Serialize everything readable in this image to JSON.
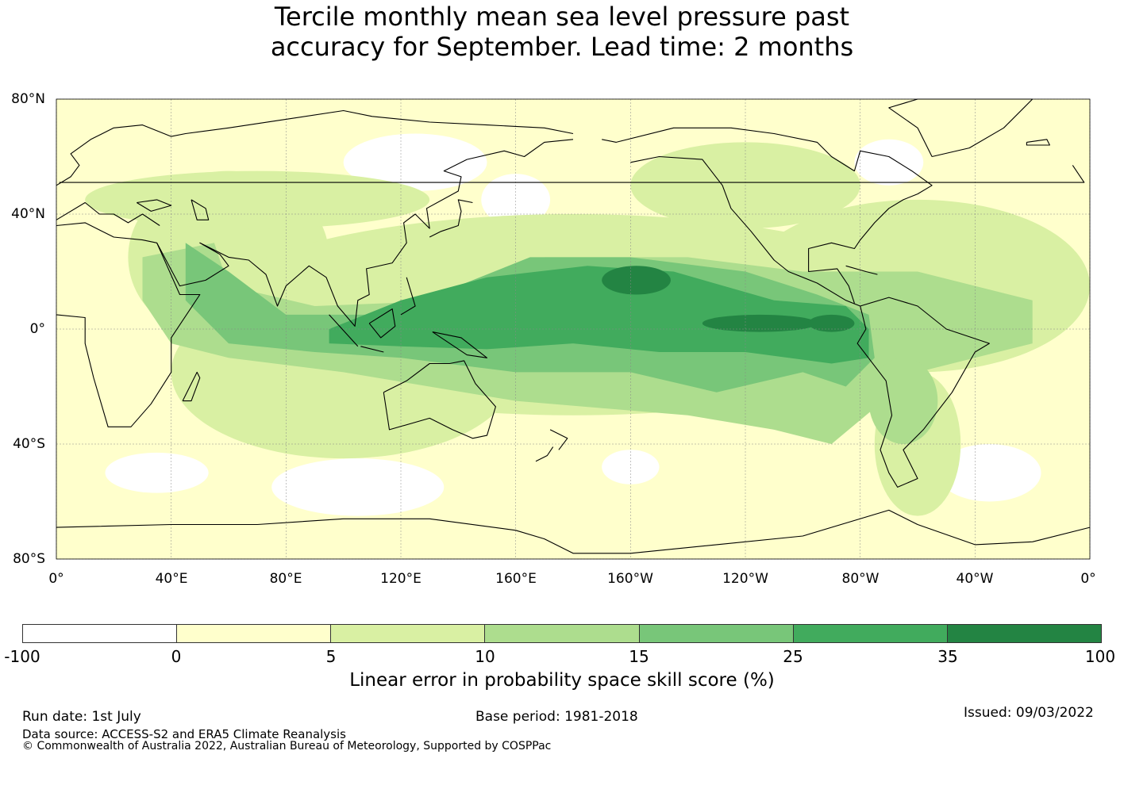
{
  "title": {
    "line1": "Tercile monthly mean sea level pressure past",
    "line2": "accuracy for September. Lead time: 2 months"
  },
  "map": {
    "lat_labels": [
      "80°N",
      "40°N",
      "0°",
      "40°S",
      "80°S"
    ],
    "lon_labels": [
      "0°",
      "40°E",
      "80°E",
      "120°E",
      "160°E",
      "160°W",
      "120°W",
      "80°W",
      "40°W",
      "0°"
    ],
    "colors": {
      "neg": "#ffffff",
      "c0_5": "#ffffcc",
      "c5_10": "#d9f0a3",
      "c10_15": "#addd8e",
      "c15_25": "#78c679",
      "c25_35": "#41ab5d",
      "c35_100": "#238443",
      "coast": "#000000",
      "grid": "#888888"
    }
  },
  "colorbar": {
    "colors": [
      "#ffffff",
      "#ffffcc",
      "#d9f0a3",
      "#addd8e",
      "#78c679",
      "#41ab5d",
      "#238443"
    ],
    "ticks": [
      "-100",
      "0",
      "5",
      "10",
      "15",
      "25",
      "35",
      "100"
    ],
    "label": "Linear error in probability space skill score (%)"
  },
  "footer": {
    "run_date": "Run date: 1st July",
    "base_period": "Base period: 1981-2018",
    "issued": "Issued: 09/03/2022",
    "data_source": "Data source: ACCESS-S2 and ERA5 Climate Reanalysis",
    "copyright": "© Commonwealth of Australia 2022, Australian Bureau of Meteorology, Supported by COSPPac"
  }
}
